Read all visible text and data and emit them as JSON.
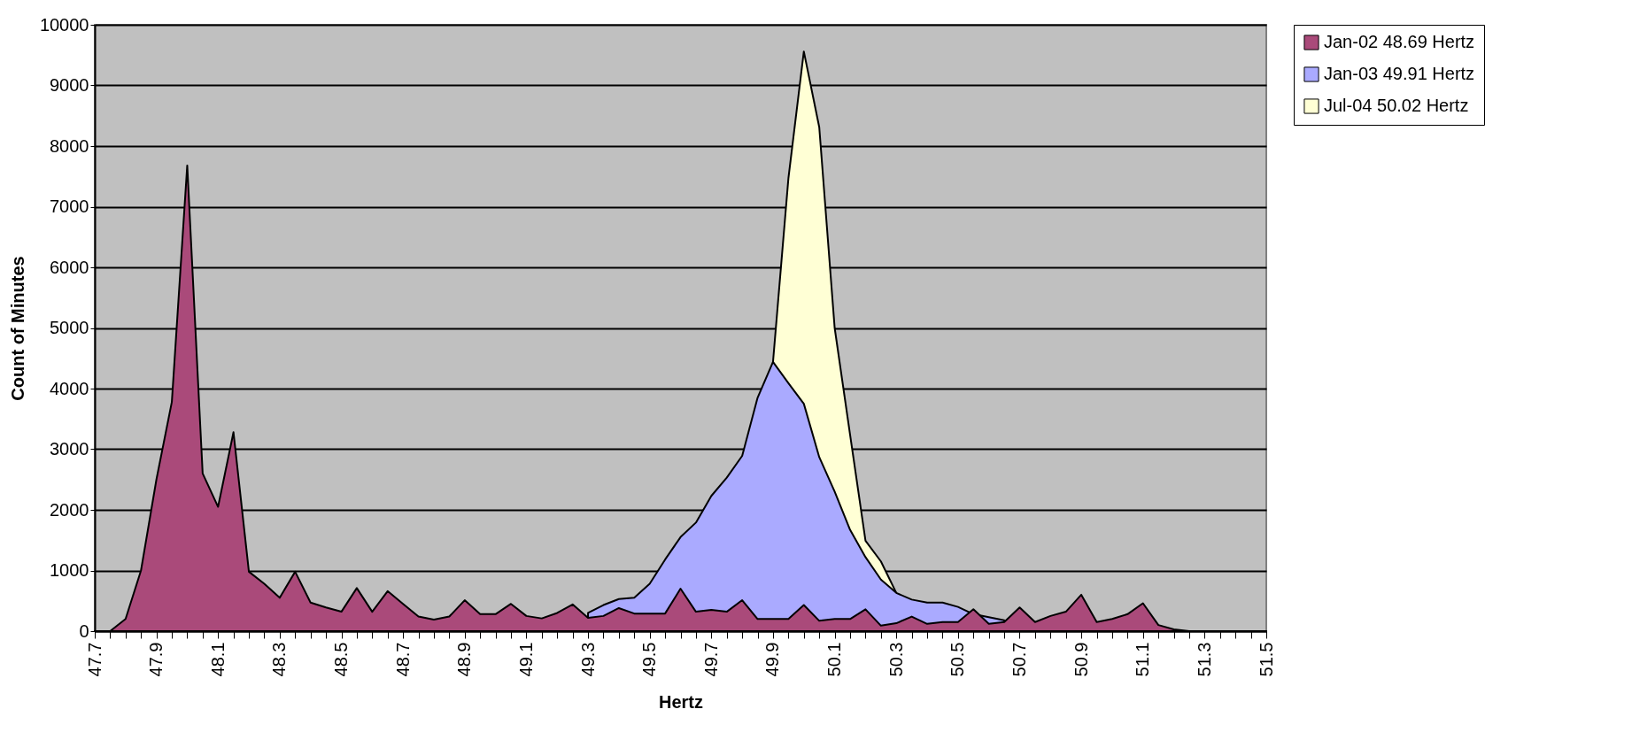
{
  "chart_data": {
    "type": "area",
    "xlabel": "Hertz",
    "ylabel": "Count of Minutes",
    "x": [
      47.7,
      47.75,
      47.8,
      47.85,
      47.9,
      47.95,
      48,
      48.05,
      48.1,
      48.15,
      48.2,
      48.25,
      48.3,
      48.35,
      48.4,
      48.45,
      48.5,
      48.55,
      48.6,
      48.65,
      48.7,
      48.75,
      48.8,
      48.85,
      48.9,
      48.95,
      49,
      49.05,
      49.1,
      49.15,
      49.2,
      49.25,
      49.3,
      49.35,
      49.4,
      49.45,
      49.5,
      49.55,
      49.6,
      49.65,
      49.7,
      49.75,
      49.8,
      49.85,
      49.9,
      49.95,
      50,
      50.05,
      50.1,
      50.15,
      50.2,
      50.25,
      50.3,
      50.35,
      50.4,
      50.45,
      50.5,
      50.55,
      50.6,
      50.65,
      50.7,
      50.75,
      50.8,
      50.85,
      50.9,
      50.95,
      51,
      51.05,
      51.1,
      51.15,
      51.2,
      51.25,
      51.3,
      51.35,
      51.4,
      51.45,
      51.5
    ],
    "series": [
      {
        "name": "Jan-02 48.69 Hertz",
        "color": "#aa4a7a",
        "values": [
          0,
          0,
          200,
          1000,
          2500,
          3780,
          7680,
          2600,
          2050,
          3280,
          980,
          780,
          550,
          980,
          470,
          390,
          320,
          710,
          320,
          660,
          450,
          240,
          190,
          240,
          510,
          280,
          280,
          450,
          250,
          210,
          300,
          440,
          220,
          250,
          380,
          290,
          290,
          290,
          700,
          320,
          350,
          320,
          510,
          200,
          200,
          200,
          430,
          170,
          200,
          200,
          360,
          90,
          130,
          240,
          120,
          150,
          150,
          360,
          120,
          150,
          390,
          150,
          250,
          320,
          600,
          150,
          200,
          280,
          460,
          100,
          30,
          0,
          0,
          0,
          0,
          0,
          0
        ]
      },
      {
        "name": "Jan-03 49.91 Hertz",
        "color": "#aaaaff",
        "values": [
          null,
          null,
          null,
          null,
          null,
          null,
          null,
          null,
          null,
          null,
          null,
          null,
          null,
          null,
          null,
          null,
          null,
          null,
          null,
          null,
          null,
          null,
          null,
          null,
          null,
          null,
          null,
          null,
          null,
          null,
          null,
          null,
          300,
          430,
          530,
          550,
          780,
          1180,
          1550,
          1790,
          2230,
          2530,
          2890,
          3850,
          4440,
          4090,
          3750,
          2870,
          2300,
          1670,
          1220,
          850,
          630,
          520,
          470,
          470,
          400,
          280,
          230,
          180,
          null,
          null,
          null,
          null,
          null,
          null,
          null,
          null,
          null,
          null,
          null,
          null,
          null,
          null,
          null,
          null,
          null
        ]
      },
      {
        "name": "Jul-04  50.02 Hertz",
        "color": "#ffffd5",
        "values": [
          null,
          null,
          null,
          null,
          null,
          null,
          null,
          null,
          null,
          null,
          null,
          null,
          null,
          null,
          null,
          null,
          null,
          null,
          null,
          null,
          null,
          null,
          null,
          null,
          null,
          null,
          null,
          null,
          null,
          null,
          null,
          null,
          null,
          null,
          null,
          null,
          null,
          null,
          null,
          null,
          null,
          null,
          null,
          null,
          4440,
          7470,
          9560,
          8310,
          5000,
          3240,
          1490,
          1150,
          630,
          null,
          null,
          null,
          null,
          null,
          null,
          null,
          null,
          null,
          null,
          null,
          null,
          null,
          null,
          null,
          null,
          null,
          null,
          null,
          null,
          null,
          null,
          null,
          null
        ]
      }
    ],
    "xlim": [
      47.7,
      51.5
    ],
    "ylim": [
      0,
      10000
    ],
    "xticks": [
      47.7,
      {
        "value": 47.75,
        "label": null
      },
      {
        "value": 47.8,
        "label": null
      },
      {
        "value": 47.85,
        "label": null
      },
      47.9,
      {
        "value": 47.95,
        "label": null
      },
      {
        "value": 48,
        "label": null
      },
      {
        "value": 48.05,
        "label": null
      },
      48.1,
      {
        "value": 48.15,
        "label": null
      },
      {
        "value": 48.2,
        "label": null
      },
      {
        "value": 48.25,
        "label": null
      },
      48.3,
      {
        "value": 48.35,
        "label": null
      },
      {
        "value": 48.4,
        "label": null
      },
      {
        "value": 48.45,
        "label": null
      },
      48.5,
      {
        "value": 48.55,
        "label": null
      },
      {
        "value": 48.6,
        "label": null
      },
      {
        "value": 48.65,
        "label": null
      },
      48.7,
      {
        "value": 48.75,
        "label": null
      },
      {
        "value": 48.8,
        "label": null
      },
      {
        "value": 48.85,
        "label": null
      },
      48.9,
      {
        "value": 48.95,
        "label": null
      },
      {
        "value": 49,
        "label": null
      },
      {
        "value": 49.05,
        "label": null
      },
      49.1,
      {
        "value": 49.15,
        "label": null
      },
      {
        "value": 49.2,
        "label": null
      },
      {
        "value": 49.25,
        "label": null
      },
      49.3,
      {
        "value": 49.35,
        "label": null
      },
      {
        "value": 49.4,
        "label": null
      },
      {
        "value": 49.45,
        "label": null
      },
      49.5,
      {
        "value": 49.55,
        "label": null
      },
      {
        "value": 49.6,
        "label": null
      },
      {
        "value": 49.65,
        "label": null
      },
      49.7,
      {
        "value": 49.75,
        "label": null
      },
      {
        "value": 49.8,
        "label": null
      },
      {
        "value": 49.85,
        "label": null
      },
      49.9,
      {
        "value": 49.95,
        "label": null
      },
      {
        "value": 50,
        "label": null
      },
      {
        "value": 50.05,
        "label": null
      },
      50.1,
      {
        "value": 50.15,
        "label": null
      },
      {
        "value": 50.2,
        "label": null
      },
      {
        "value": 50.25,
        "label": null
      },
      50.3,
      {
        "value": 50.35,
        "label": null
      },
      {
        "value": 50.4,
        "label": null
      },
      {
        "value": 50.45,
        "label": null
      },
      50.5,
      {
        "value": 50.55,
        "label": null
      },
      {
        "value": 50.6,
        "label": null
      },
      {
        "value": 50.65,
        "label": null
      },
      50.7,
      {
        "value": 50.75,
        "label": null
      },
      {
        "value": 50.8,
        "label": null
      },
      {
        "value": 50.85,
        "label": null
      },
      50.9,
      {
        "value": 50.95,
        "label": null
      },
      {
        "value": 51,
        "label": null
      },
      {
        "value": 51.05,
        "label": null
      },
      51.1,
      {
        "value": 51.15,
        "label": null
      },
      {
        "value": 51.2,
        "label": null
      },
      {
        "value": 51.25,
        "label": null
      },
      51.3,
      {
        "value": 51.35,
        "label": null
      },
      {
        "value": 51.4,
        "label": null
      },
      {
        "value": 51.45,
        "label": null
      },
      51.5
    ],
    "yticks": [
      0,
      1000,
      2000,
      3000,
      4000,
      5000,
      6000,
      7000,
      8000,
      9000,
      10000
    ],
    "grid": "y",
    "legend": "right"
  }
}
